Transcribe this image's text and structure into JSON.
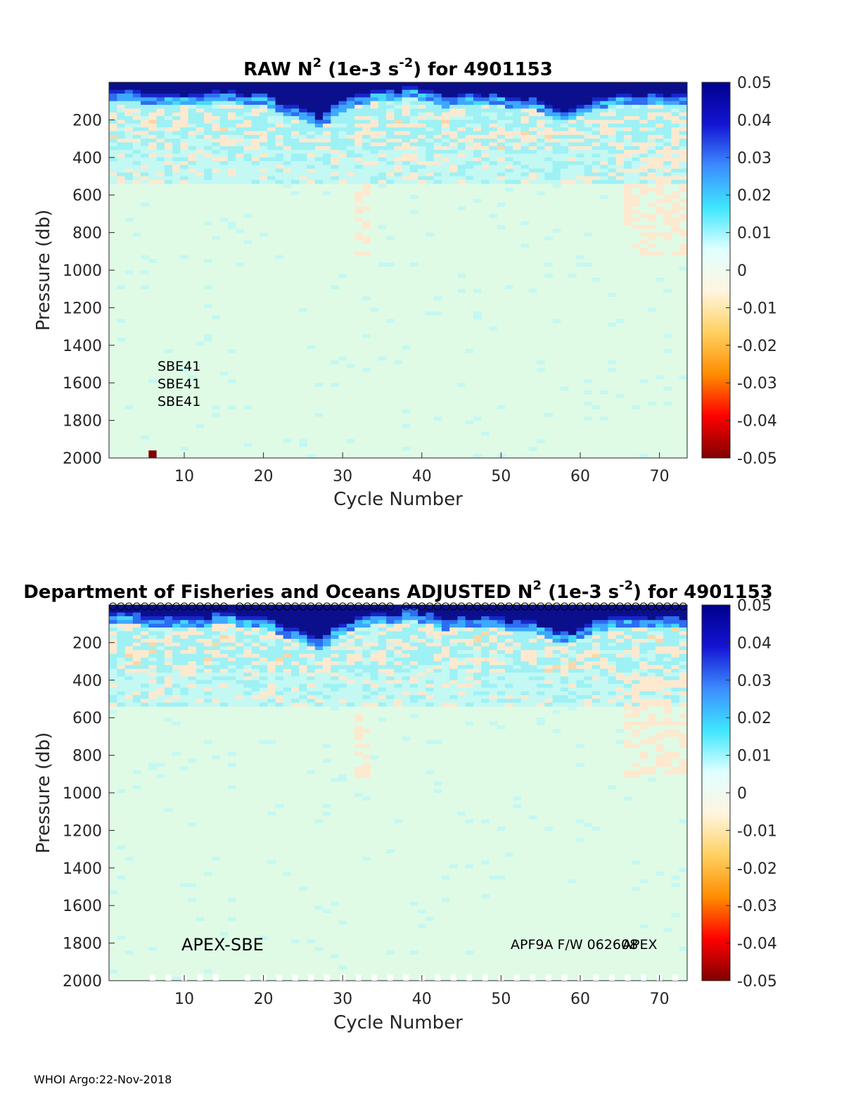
{
  "footer": "WHOI Argo:22-Nov-2018",
  "colors": {
    "background": "#dffbe6",
    "strong_positive": "#0b0f8c",
    "min_color": "#800000"
  },
  "colorbar": {
    "ticks": [
      "0.05",
      "0.04",
      "0.03",
      "0.02",
      "0.01",
      "0",
      "-0.01",
      "-0.02",
      "-0.03",
      "-0.04",
      "-0.05"
    ],
    "range": [
      -0.05,
      0.05
    ],
    "stops": [
      "#800000",
      "#ff0000",
      "#ff8c00",
      "#ffd060",
      "#fff5e0",
      "#e0ffff",
      "#3ee6ff",
      "#3c8cff",
      "#1414d4",
      "#00008c"
    ]
  },
  "chart_data": [
    {
      "type": "heatmap",
      "title_prefix": "RAW N",
      "title_exp": "2",
      "title_mid": " (1e-3 s",
      "title_exp2": "-2",
      "title_suffix": ") for 4901153",
      "xlabel": "Cycle Number",
      "ylabel": "Pressure (db)",
      "xlim": [
        1,
        73
      ],
      "ylim": [
        2000,
        0
      ],
      "xticks": [
        "10",
        "20",
        "30",
        "40",
        "50",
        "60",
        "70"
      ],
      "yticks": [
        "200",
        "400",
        "600",
        "800",
        "1000",
        "1200",
        "1400",
        "1600",
        "1800",
        "2000"
      ],
      "annotations": [
        "SBE41",
        "SBE41",
        "SBE41"
      ],
      "deep_outlier": {
        "cycle": 6,
        "pressure": 1980,
        "value": -0.05
      }
    },
    {
      "type": "heatmap",
      "title_prefix": "Department of Fisheries and Oceans  ADJUSTED N",
      "title_exp": "2",
      "title_mid": " (1e-3 s",
      "title_exp2": "-2",
      "title_suffix": ") for 4901153",
      "xlabel": "Cycle Number",
      "ylabel": "Pressure (db)",
      "xlim": [
        1,
        73
      ],
      "ylim": [
        2000,
        0
      ],
      "xticks": [
        "10",
        "20",
        "30",
        "40",
        "50",
        "60",
        "70"
      ],
      "yticks": [
        "200",
        "400",
        "600",
        "800",
        "1000",
        "1200",
        "1400",
        "1600",
        "1800",
        "2000"
      ],
      "annotations": [
        "APEX-SBE",
        "APF9A F/W 062608",
        "APEX"
      ],
      "surface_marker_cycles_missing": [
        16,
        37
      ]
    }
  ],
  "mixed_layer_raw": [
    60,
    60,
    70,
    60,
    80,
    80,
    80,
    80,
    80,
    80,
    80,
    80,
    80,
    60,
    60,
    60,
    80,
    80,
    90,
    90,
    110,
    130,
    140,
    150,
    170,
    190,
    200,
    180,
    140,
    120,
    100,
    90,
    80,
    70,
    60,
    60,
    60,
    40,
    40,
    60,
    60,
    80,
    100,
    90,
    80,
    80,
    90,
    90,
    90,
    90,
    100,
    100,
    110,
    110,
    130,
    150,
    170,
    170,
    160,
    140,
    120,
    110,
    100,
    90,
    80,
    80,
    80,
    80,
    80,
    80,
    80,
    80,
    80
  ]
}
